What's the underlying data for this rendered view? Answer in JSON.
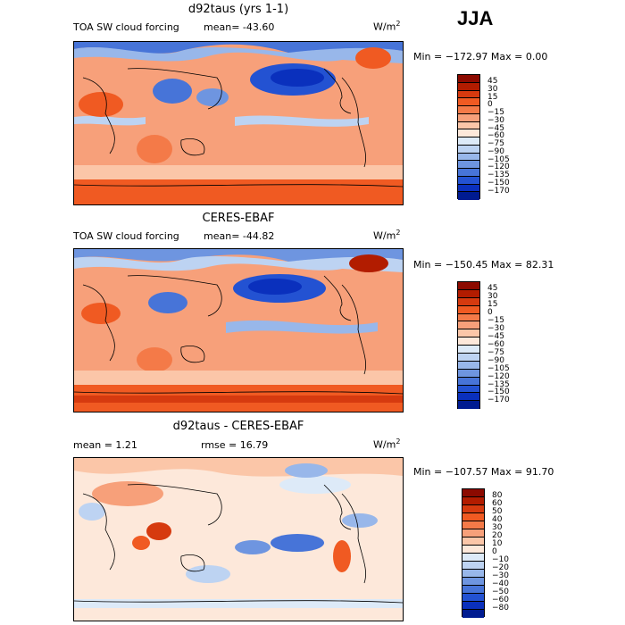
{
  "season": "JJA",
  "palette_abs": [
    "#8c0a00",
    "#b21c00",
    "#d63a0f",
    "#f05a22",
    "#f47a48",
    "#f7a07a",
    "#fbc6a8",
    "#fde8da",
    "#ddeaf8",
    "#bdd3f2",
    "#98b7ea",
    "#6e95e0",
    "#4774d8",
    "#2352d2",
    "#0a30bd",
    "#001b91"
  ],
  "palette_diff": [
    "#8c0a00",
    "#b21c00",
    "#d63a0f",
    "#f05a22",
    "#f47a48",
    "#f7a07a",
    "#fbc6a8",
    "#fde8da",
    "#ddeaf8",
    "#bdd3f2",
    "#98b7ea",
    "#6e95e0",
    "#4774d8",
    "#2352d2",
    "#0a30bd",
    "#001b91"
  ],
  "panels": [
    {
      "title": "d92taus (yrs 1-1)",
      "left_label": "TOA SW cloud forcing",
      "mean_label": "mean= -43.60",
      "units": "W/m",
      "units_exp": "2",
      "min_max": "Min = −172.97 Max =    0.00",
      "ticks": [
        "45",
        "30",
        "15",
        "0",
        "−15",
        "−30",
        "−45",
        "−60",
        "−75",
        "−90",
        "−105",
        "−120",
        "−135",
        "−150",
        "−170"
      ]
    },
    {
      "title": "CERES-EBAF",
      "left_label": "TOA SW cloud forcing",
      "mean_label": "mean= -44.82",
      "units": "W/m",
      "units_exp": "2",
      "min_max": "Min = −150.45 Max =  82.31",
      "ticks": [
        "45",
        "30",
        "15",
        "0",
        "−15",
        "−30",
        "−45",
        "−60",
        "−75",
        "−90",
        "−105",
        "−120",
        "−135",
        "−150",
        "−170"
      ]
    },
    {
      "title": "d92taus - CERES-EBAF",
      "left_label": "mean =    1.21",
      "mean_label": "rmse =   16.79",
      "units": "W/m",
      "units_exp": "2",
      "min_max": "Min = −107.57 Max =  91.70",
      "ticks": [
        "80",
        "60",
        "50",
        "40",
        "30",
        "20",
        "10",
        "0",
        "−10",
        "−20",
        "−30",
        "−40",
        "−50",
        "−60",
        "−80"
      ]
    }
  ]
}
